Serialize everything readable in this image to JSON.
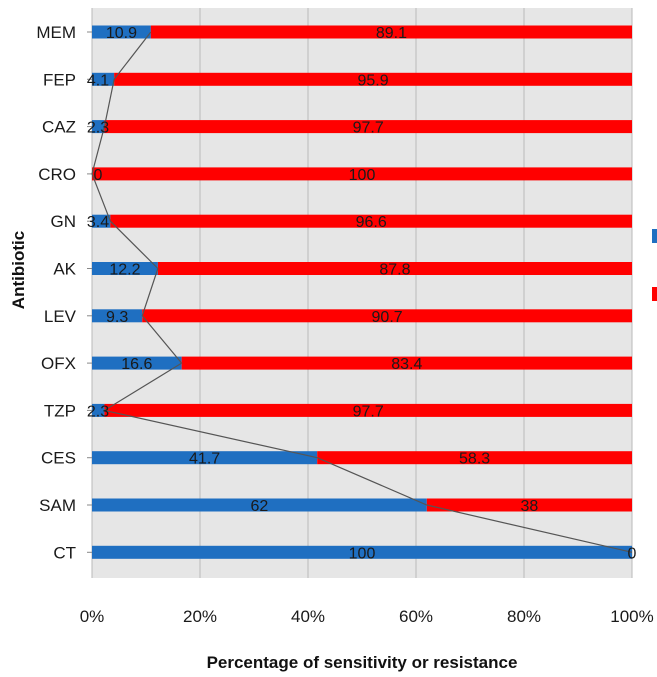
{
  "chart_data": {
    "type": "bar",
    "stacked": true,
    "orientation": "horizontal",
    "categories": [
      "MEM",
      "FEP",
      "CAZ",
      "CRO",
      "GN",
      "AK",
      "LEV",
      "OFX",
      "TZP",
      "CES",
      "SAM",
      "CT"
    ],
    "series": [
      {
        "values": [
          10.9,
          4.1,
          2.3,
          0,
          3.4,
          12.2,
          9.3,
          16.6,
          2.3,
          41.7,
          62,
          100
        ],
        "color": "#1f6fc1"
      },
      {
        "values": [
          89.1,
          95.9,
          97.7,
          100,
          96.6,
          87.8,
          90.7,
          83.4,
          97.7,
          58.3,
          38,
          0
        ],
        "color": "#ff0000"
      }
    ],
    "value_labels": {
      "first": [
        "10.9",
        "4.1",
        "2.3",
        "0",
        "3.4",
        "12.2",
        "9.3",
        "16.6",
        "2.3",
        "41.7",
        "62",
        "100"
      ],
      "second": [
        "89.1",
        "95.9",
        "97.7",
        "100",
        "96.6",
        "87.8",
        "90.7",
        "83.4",
        "97.7",
        "58.3",
        "38",
        "0"
      ]
    },
    "xlabel": "Percentage of sensitivity or resistance",
    "ylabel": "Antibiotic",
    "x_ticks": [
      "0%",
      "20%",
      "40%",
      "60%",
      "80%",
      "100%"
    ],
    "xlim": [
      0,
      100
    ],
    "grid": true,
    "plot_background": "#e6e6e6",
    "connector_line": {
      "color": "#555555"
    },
    "legend": {
      "placement": "right",
      "entries_visible": false
    }
  }
}
